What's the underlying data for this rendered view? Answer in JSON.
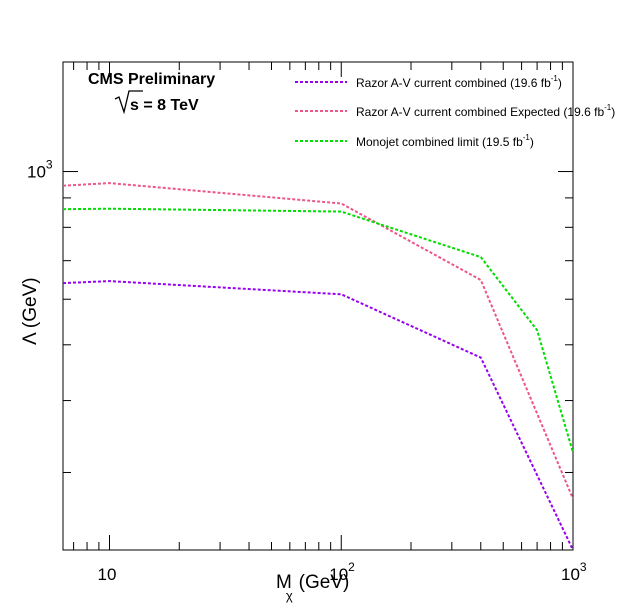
{
  "chart_data": {
    "type": "line",
    "title": "",
    "annotations": {
      "experiment": "CMS Preliminary",
      "energy_prefix": "s",
      "energy_value": " = 8 TeV"
    },
    "xlabel": {
      "main": "M",
      "sub": "χ",
      "unit": "(GeV)"
    },
    "ylabel": "Λ (GeV)",
    "x_scale": "log",
    "y_scale": "log",
    "xlim": [
      6.3,
      1000
    ],
    "ylim": [
      220,
      1550
    ],
    "x_ticks": [
      {
        "value": 10,
        "base": "10",
        "exp": ""
      },
      {
        "value": 100,
        "base": "10",
        "exp": "2"
      },
      {
        "value": 1000,
        "base": "10",
        "exp": "3"
      }
    ],
    "y_ticks": [
      {
        "value": 1000,
        "base": "10",
        "exp": "3"
      }
    ],
    "grid": false,
    "legend_position": "top-right",
    "series": [
      {
        "name": "Razor A-V current combined (19.6 fb",
        "name_sup": "-1",
        "name_end": ")",
        "color": "#9900ee",
        "x": [
          6.3,
          10,
          100,
          400,
          1000
        ],
        "y": [
          640,
          645,
          612,
          475,
          220
        ]
      },
      {
        "name": "Razor A-V current combined Expected (19.6 fb",
        "name_sup": "-1",
        "name_end": ")",
        "color": "#ee5588",
        "x": [
          6.3,
          10,
          100,
          400,
          1000
        ],
        "y": [
          945,
          955,
          880,
          648,
          270
        ]
      },
      {
        "name": "Monojet combined limit (19.5 fb",
        "name_sup": "-1",
        "name_end": ")",
        "color": "#00dd00",
        "x": [
          6.3,
          10,
          100,
          400,
          700,
          1000
        ],
        "y": [
          860,
          862,
          852,
          710,
          530,
          325
        ]
      }
    ]
  }
}
